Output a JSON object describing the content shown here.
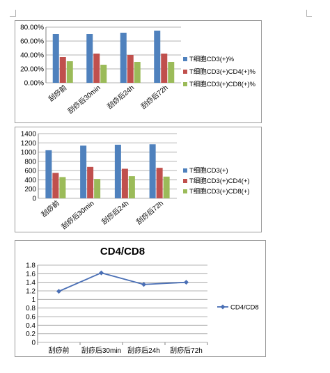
{
  "chart_data": [
    {
      "type": "bar",
      "categories": [
        "刮痧前",
        "刮痧后30min",
        "刮痧后24h",
        "刮痧后72h"
      ],
      "series": [
        {
          "name": "T细胞CD3(+)%",
          "values": [
            70,
            70,
            72,
            75
          ]
        },
        {
          "name": "T细胞CD3(+)CD4(+)%",
          "values": [
            37,
            42,
            40,
            42
          ]
        },
        {
          "name": "T细胞CD3(+)CD8(+)%",
          "values": [
            31,
            26,
            30,
            30
          ]
        }
      ],
      "yticks": [
        "0.00%",
        "20.00%",
        "40.00%",
        "60.00%",
        "80.00%"
      ],
      "ylim": [
        0,
        80
      ],
      "grid": true,
      "legend": "right",
      "colors": [
        "#4f81bd",
        "#c0504d",
        "#9bbb59"
      ]
    },
    {
      "type": "bar",
      "categories": [
        "刮痧前",
        "刮痧后30min",
        "刮痧后24h",
        "刮痧后72h"
      ],
      "series": [
        {
          "name": "T细胞CD3(+)",
          "values": [
            1040,
            1140,
            1160,
            1170
          ]
        },
        {
          "name": "T细胞CD3(+)CD4(+)",
          "values": [
            550,
            680,
            640,
            660
          ]
        },
        {
          "name": "T细胞CD3(+)CD8(+)",
          "values": [
            460,
            420,
            480,
            470
          ]
        }
      ],
      "yticks": [
        "0",
        "200",
        "400",
        "600",
        "800",
        "1000",
        "1200",
        "1400"
      ],
      "ylim": [
        0,
        1400
      ],
      "grid": true,
      "legend": "right",
      "colors": [
        "#4f81bd",
        "#c0504d",
        "#9bbb59"
      ]
    },
    {
      "type": "line",
      "title": "CD4/CD8",
      "categories": [
        "刮痧前",
        "刮痧后30min",
        "刮痧后24h",
        "刮痧后72h"
      ],
      "series": [
        {
          "name": "CD4/CD8",
          "values": [
            1.19,
            1.62,
            1.35,
            1.4
          ]
        }
      ],
      "yticks": [
        "0",
        "0.2",
        "0.4",
        "0.6",
        "0.8",
        "1",
        "1.2",
        "1.4",
        "1.6",
        "1.8"
      ],
      "ylim": [
        0,
        1.8
      ],
      "grid": true,
      "legend": "right",
      "colors": [
        "#4a6fb5"
      ]
    }
  ]
}
